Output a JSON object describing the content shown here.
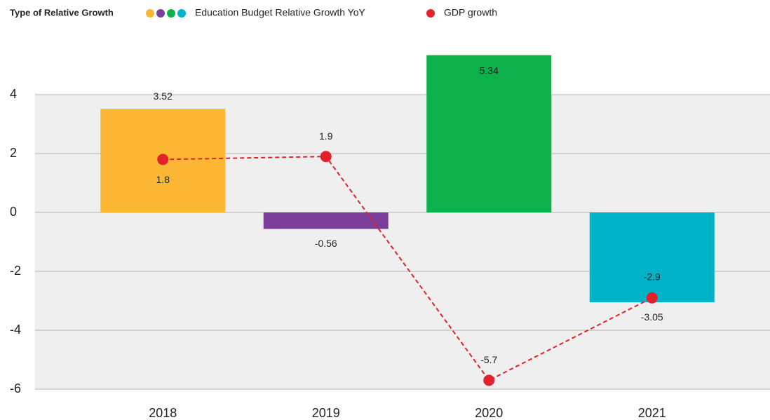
{
  "chart_data": {
    "type": "bar",
    "legend_title": "Type of Relative Growth",
    "categories": [
      "2018",
      "2019",
      "2020",
      "2021"
    ],
    "series": [
      {
        "name": "Education Budget Relative Growth YoY",
        "type": "bar",
        "colors": [
          "#fbb634",
          "#7b3f9b",
          "#0db14b",
          "#00b3c8"
        ],
        "values": [
          3.52,
          -0.56,
          5.34,
          -3.05
        ]
      },
      {
        "name": "GDP growth",
        "type": "line",
        "color": "#e2222b",
        "values": [
          1.8,
          1.9,
          -5.7,
          -2.9
        ]
      }
    ],
    "ylim": [
      -6,
      6
    ],
    "yticks": [
      -6,
      -4,
      -2,
      0,
      2,
      4
    ],
    "grid": true
  }
}
